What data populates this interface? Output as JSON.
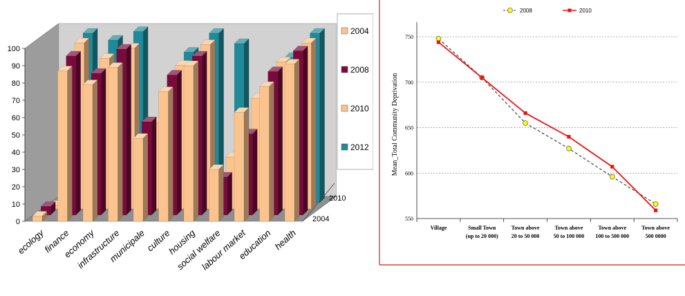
{
  "chart_data": [
    {
      "type": "bar",
      "title": "",
      "xlabel": "",
      "ylabel": "",
      "ylim": [
        0,
        100
      ],
      "y_ticks": [
        "0",
        "10",
        "20",
        "30",
        "40",
        "50",
        "60",
        "70",
        "80",
        "90",
        "100"
      ],
      "depth_labels": [
        "2004",
        "2010"
      ],
      "categories": [
        "ecology",
        "finance",
        "economy",
        "infrastructure",
        "municipale",
        "culture",
        "housing",
        "social welfare",
        "labour market",
        "education",
        "health"
      ],
      "series": [
        {
          "name": "2004",
          "color": "#fbc48f",
          "values": [
            3,
            87,
            79,
            89,
            48,
            75,
            90,
            30,
            63,
            78,
            91
          ]
        },
        {
          "name": "2008",
          "color": "#7a0a3c",
          "values": [
            5,
            92,
            82,
            96,
            54,
            81,
            92,
            22,
            47,
            83,
            95
          ]
        },
        {
          "name": "2010",
          "color": "#fbc48f",
          "values": [
            2,
            96,
            87,
            93,
            50,
            83,
            95,
            30,
            64,
            85,
            96
          ]
        },
        {
          "name": "2012",
          "color": "#1f8a9a",
          "values": [
            1,
            98,
            94,
            99,
            54,
            87,
            98,
            92,
            66,
            84,
            98
          ]
        }
      ],
      "legend": "right",
      "grid": false
    },
    {
      "type": "line",
      "title": "",
      "ylabel": "Mean_Total Community Deprivation",
      "xlabel": "",
      "ylim": [
        550,
        760
      ],
      "y_ticks": [
        "550",
        "600",
        "650",
        "700",
        "750"
      ],
      "categories": [
        [
          "Village"
        ],
        [
          "Small Town",
          "(up to 20 000)"
        ],
        [
          "Town above",
          "20 to 50 000"
        ],
        [
          "Town above",
          "50 to 100 000"
        ],
        [
          "Town above",
          "100 to 500 000"
        ],
        [
          "Town above",
          "500 0000"
        ]
      ],
      "series": [
        {
          "name": "2008",
          "color": "#444444",
          "marker_color": "#ffff00",
          "values": [
            748,
            705,
            655,
            627,
            596,
            566
          ]
        },
        {
          "name": "2010",
          "color": "#ee1111",
          "values": [
            744,
            705,
            666,
            640,
            607,
            559
          ]
        }
      ],
      "legend": "top",
      "grid": true
    }
  ]
}
